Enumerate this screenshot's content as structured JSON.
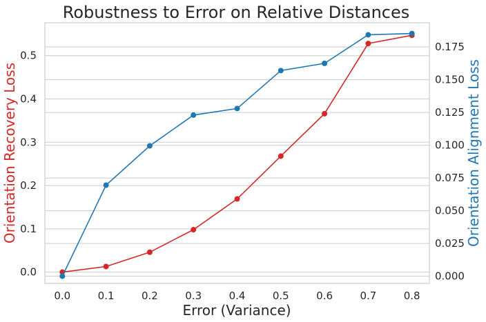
{
  "chart_data": {
    "type": "line",
    "title": "Robustness to Error on Relative Distances",
    "xlabel": "Error (Variance)",
    "x": [
      0.0,
      0.1,
      0.2,
      0.3,
      0.4,
      0.5,
      0.6,
      0.7,
      0.8
    ],
    "x_tick_labels": [
      "0.0",
      "0.1",
      "0.2",
      "0.3",
      "0.4",
      "0.5",
      "0.6",
      "0.7",
      "0.8"
    ],
    "xlim": [
      -0.04,
      0.84
    ],
    "grid": true,
    "left_axis": {
      "label": "Orientation Recovery Loss",
      "color": "#d62728",
      "ylim": [
        -0.026,
        0.576
      ],
      "ticks": [
        0.0,
        0.1,
        0.2,
        0.3,
        0.4,
        0.5
      ],
      "tick_labels": [
        "0.0",
        "0.1",
        "0.2",
        "0.3",
        "0.4",
        "0.5"
      ]
    },
    "right_axis": {
      "label": "Orientation Alignment Loss",
      "color": "#1f77b4",
      "ylim": [
        -0.0055,
        0.1935
      ],
      "ticks": [
        0.0,
        0.025,
        0.05,
        0.075,
        0.1,
        0.125,
        0.15,
        0.175
      ],
      "tick_labels": [
        "0.000",
        "0.025",
        "0.050",
        "0.075",
        "0.100",
        "0.125",
        "0.150",
        "0.175"
      ]
    },
    "series": [
      {
        "axis": "left",
        "color": "#d62728",
        "values": [
          0.0,
          0.013,
          0.046,
          0.098,
          0.169,
          0.268,
          0.366,
          0.528,
          0.547
        ]
      },
      {
        "axis": "right",
        "color": "#1f77b4",
        "values": [
          0.0,
          0.0695,
          0.0995,
          0.123,
          0.128,
          0.157,
          0.1625,
          0.1843,
          0.1853
        ]
      }
    ]
  }
}
